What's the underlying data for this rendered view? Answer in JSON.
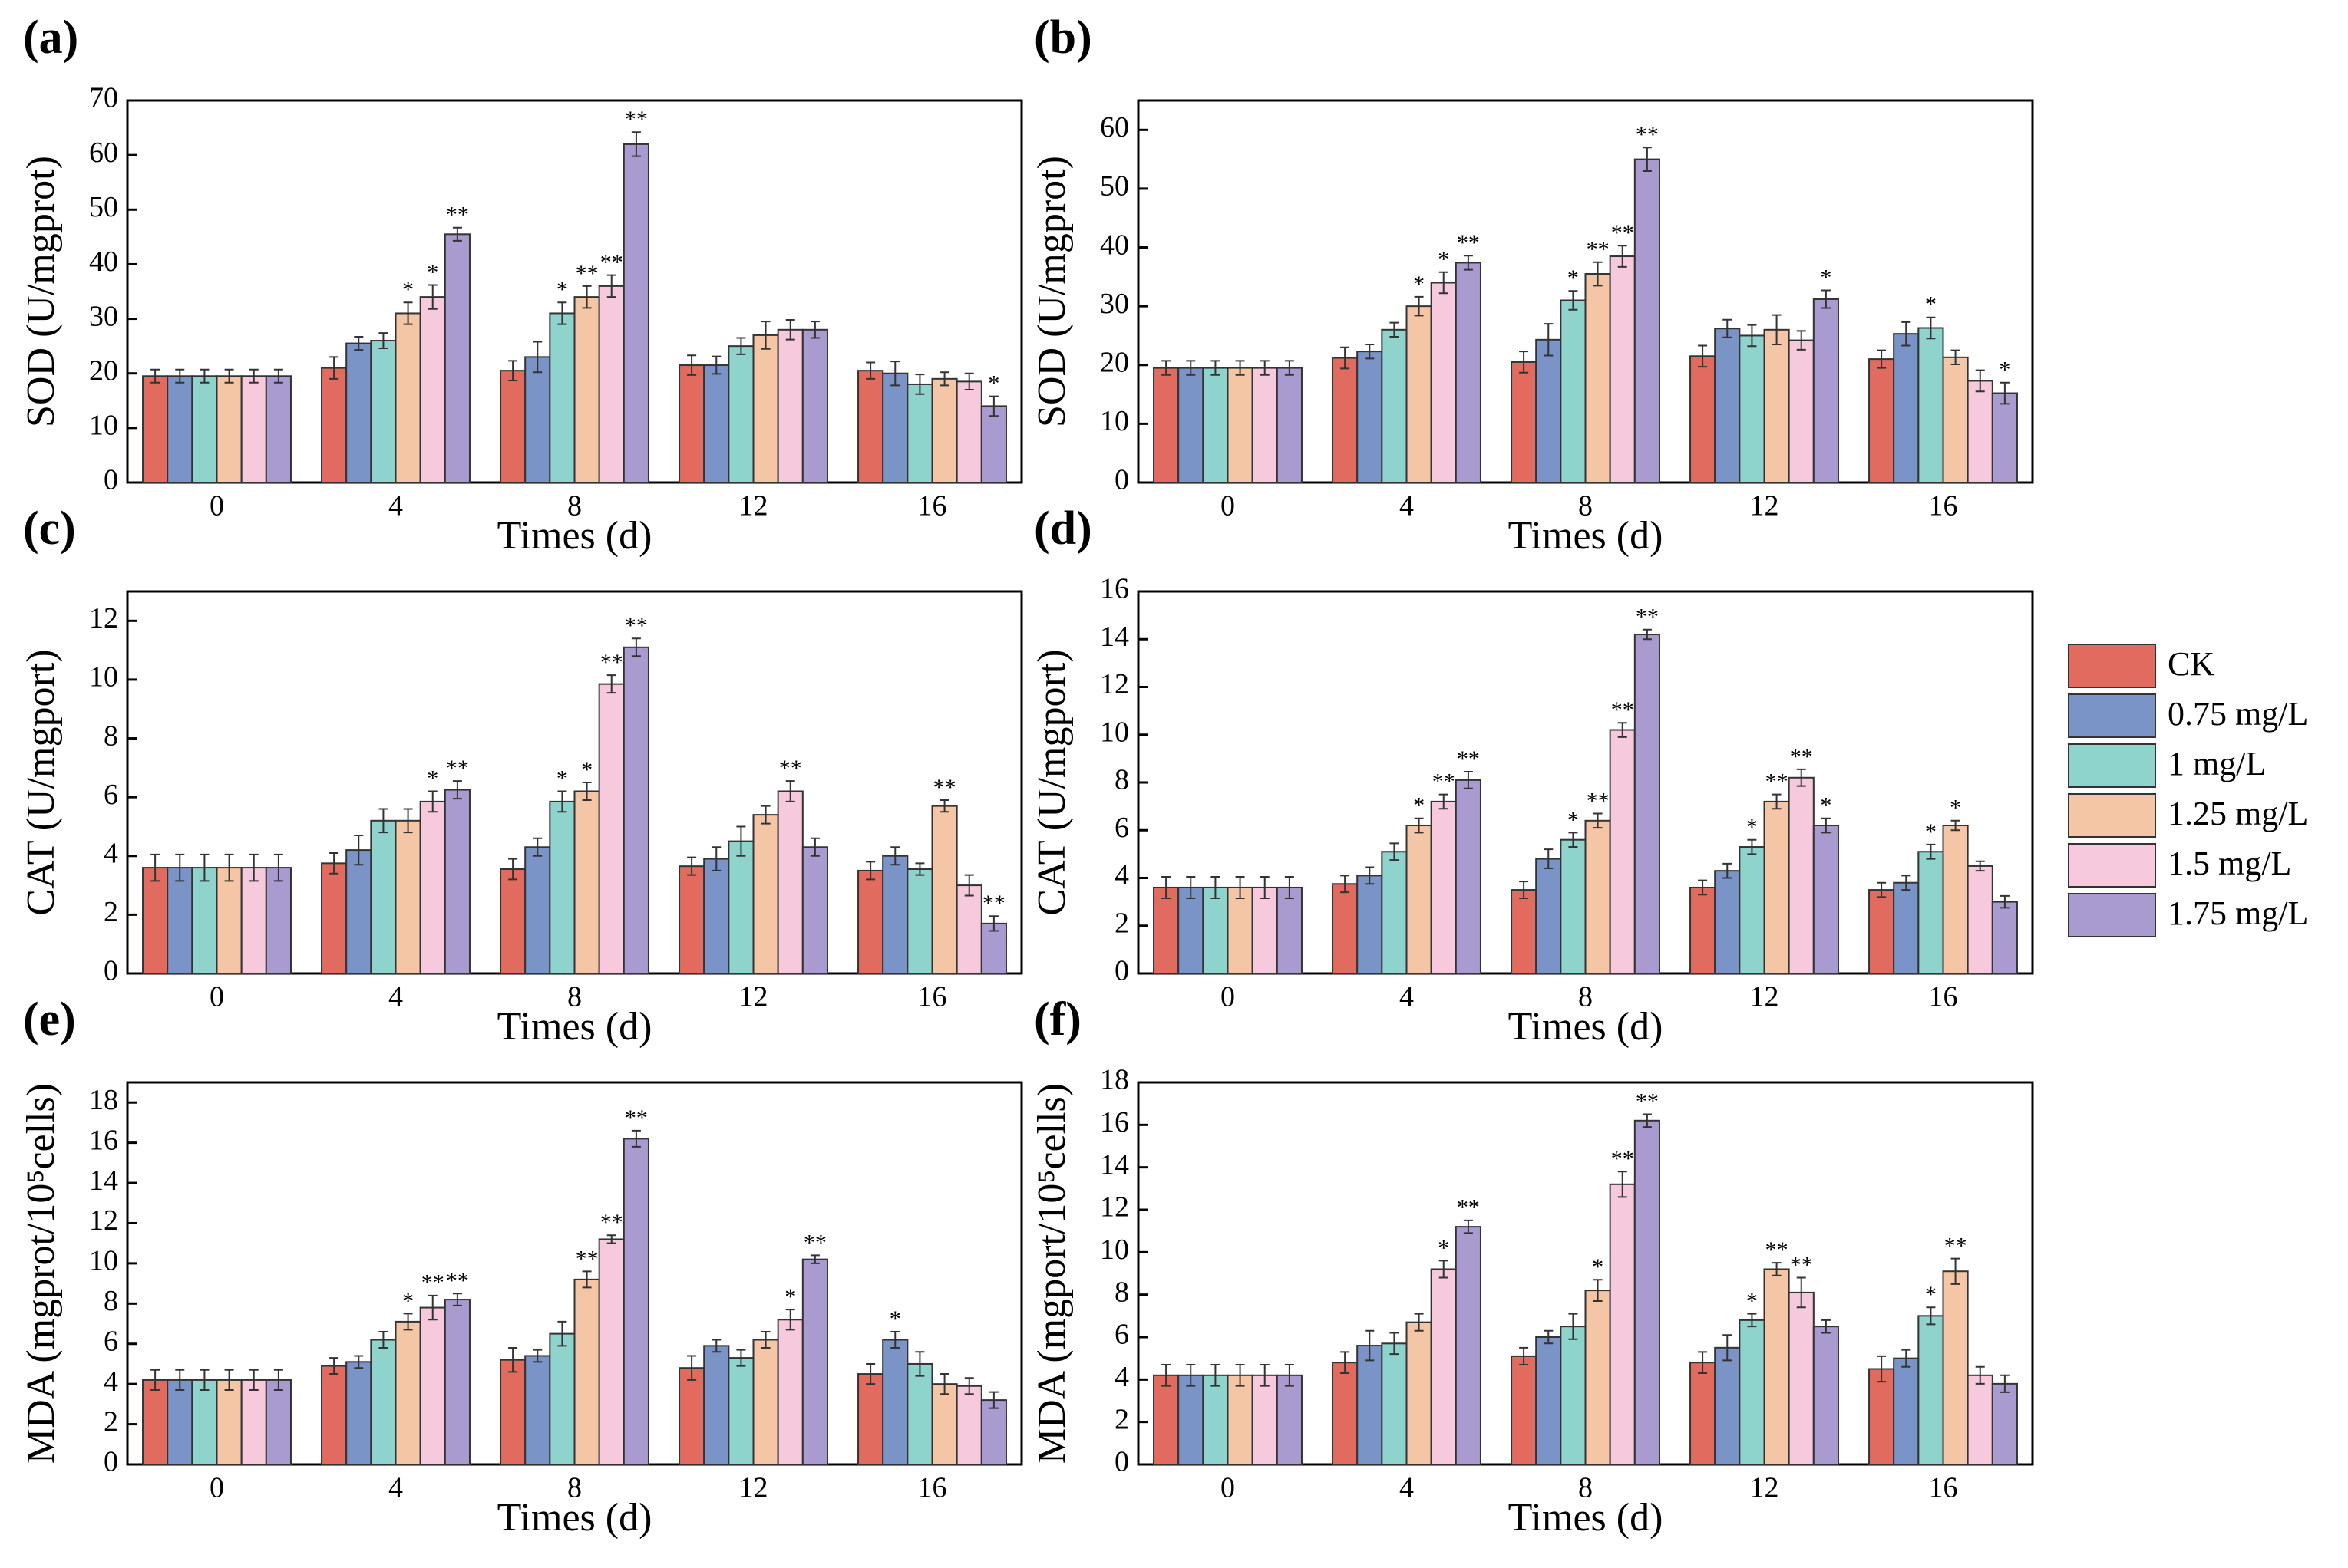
{
  "chart_data": [
    {
      "type": "bar",
      "panel": "(a)",
      "ylabel": "SOD (U/mgprot)",
      "xlabel": "Times (d)",
      "categories": [
        "0",
        "4",
        "8",
        "12",
        "16"
      ],
      "ylim": [
        0,
        70
      ],
      "yticks": [
        0,
        10,
        20,
        30,
        40,
        50,
        60,
        70
      ],
      "series": [
        {
          "name": "CK",
          "color": "#e06b5e",
          "values": [
            19.5,
            21,
            20.5,
            21.5,
            20.5
          ],
          "errors": [
            1.2,
            2,
            1.8,
            1.8,
            1.5
          ],
          "labels": [
            null,
            null,
            null,
            null,
            null
          ]
        },
        {
          "name": "0.75 mg/L",
          "color": "#7a94c8",
          "values": [
            19.5,
            25.5,
            23,
            21.5,
            20
          ],
          "errors": [
            1.2,
            1.2,
            2.8,
            1.6,
            2.2
          ],
          "labels": [
            null,
            null,
            null,
            null,
            null
          ]
        },
        {
          "name": "1 mg/L",
          "color": "#8fd3cd",
          "values": [
            19.5,
            26,
            31,
            25,
            18
          ],
          "errors": [
            1.2,
            1.4,
            2,
            1.5,
            1.8
          ],
          "labels": [
            null,
            null,
            "*",
            null,
            null
          ]
        },
        {
          "name": "1.25 mg/L",
          "color": "#f5c6a5",
          "values": [
            19.5,
            31,
            34,
            27,
            19
          ],
          "errors": [
            1.2,
            2,
            2,
            2.5,
            1.2
          ],
          "labels": [
            null,
            "*",
            "**",
            null,
            null
          ]
        },
        {
          "name": "1.5 mg/L",
          "color": "#f6c9dc",
          "values": [
            19.5,
            34,
            36,
            28,
            18.5
          ],
          "errors": [
            1.2,
            2.2,
            2,
            1.8,
            1.5
          ],
          "labels": [
            null,
            "*",
            "**",
            null,
            null
          ]
        },
        {
          "name": "1.75 mg/L",
          "color": "#a99ad0",
          "values": [
            19.5,
            45.5,
            62,
            28,
            14
          ],
          "errors": [
            1.2,
            1.2,
            2.2,
            1.5,
            1.8
          ],
          "labels": [
            null,
            "**",
            "**",
            null,
            "*"
          ]
        }
      ]
    },
    {
      "type": "bar",
      "panel": "(b)",
      "ylabel": "SOD (U/mgprot)",
      "xlabel": "Times (d)",
      "categories": [
        "0",
        "4",
        "8",
        "12",
        "16"
      ],
      "ylim": [
        0,
        65
      ],
      "yticks": [
        0,
        10,
        20,
        30,
        40,
        50,
        60
      ],
      "series": [
        {
          "name": "CK",
          "color": "#e06b5e",
          "values": [
            19.5,
            21.2,
            20.5,
            21.5,
            21
          ],
          "errors": [
            1.2,
            1.8,
            1.8,
            1.8,
            1.5
          ],
          "labels": [
            null,
            null,
            null,
            null,
            null
          ]
        },
        {
          "name": "0.75 mg/L",
          "color": "#7a94c8",
          "values": [
            19.5,
            22.3,
            24.3,
            26.2,
            25.3
          ],
          "errors": [
            1.2,
            1.2,
            2.7,
            1.5,
            2
          ],
          "labels": [
            null,
            null,
            null,
            null,
            null
          ]
        },
        {
          "name": "1 mg/L",
          "color": "#8fd3cd",
          "values": [
            19.5,
            26,
            31,
            25,
            26.3
          ],
          "errors": [
            1.2,
            1.2,
            1.6,
            1.8,
            1.8
          ],
          "labels": [
            null,
            null,
            "*",
            null,
            "*"
          ]
        },
        {
          "name": "1.25 mg/L",
          "color": "#f5c6a5",
          "values": [
            19.5,
            30,
            35.5,
            26,
            21.3
          ],
          "errors": [
            1.2,
            1.6,
            2,
            2.5,
            1.2
          ],
          "labels": [
            null,
            "*",
            "**",
            null,
            null
          ]
        },
        {
          "name": "1.5 mg/L",
          "color": "#f6c9dc",
          "values": [
            19.5,
            34,
            38.5,
            24.2,
            17.3
          ],
          "errors": [
            1.2,
            1.8,
            1.8,
            1.6,
            1.8
          ],
          "labels": [
            null,
            "*",
            "**",
            null,
            null
          ]
        },
        {
          "name": "1.75 mg/L",
          "color": "#a99ad0",
          "values": [
            19.5,
            37.4,
            55,
            31.2,
            15.2
          ],
          "errors": [
            1.2,
            1.2,
            2,
            1.5,
            1.8
          ],
          "labels": [
            null,
            "**",
            "**",
            "*",
            "*"
          ]
        }
      ]
    },
    {
      "type": "bar",
      "panel": "(c)",
      "ylabel": "CAT (U/mgport)",
      "xlabel": "Times (d)",
      "categories": [
        "0",
        "4",
        "8",
        "12",
        "16"
      ],
      "ylim": [
        0,
        13
      ],
      "yticks": [
        0,
        2,
        4,
        6,
        8,
        10,
        12
      ],
      "series": [
        {
          "name": "CK",
          "color": "#e06b5e",
          "values": [
            3.6,
            3.75,
            3.55,
            3.65,
            3.5
          ],
          "errors": [
            0.45,
            0.35,
            0.35,
            0.3,
            0.3
          ],
          "labels": [
            null,
            null,
            null,
            null,
            null
          ]
        },
        {
          "name": "0.75 mg/L",
          "color": "#7a94c8",
          "values": [
            3.6,
            4.2,
            4.3,
            3.9,
            4.0
          ],
          "errors": [
            0.45,
            0.5,
            0.3,
            0.4,
            0.3
          ],
          "labels": [
            null,
            null,
            null,
            null,
            null
          ]
        },
        {
          "name": "1 mg/L",
          "color": "#8fd3cd",
          "values": [
            3.6,
            5.2,
            5.85,
            4.5,
            3.55
          ],
          "errors": [
            0.45,
            0.4,
            0.35,
            0.5,
            0.2
          ],
          "labels": [
            null,
            null,
            "*",
            null,
            null
          ]
        },
        {
          "name": "1.25 mg/L",
          "color": "#f5c6a5",
          "values": [
            3.6,
            5.2,
            6.2,
            5.4,
            5.7
          ],
          "errors": [
            0.45,
            0.4,
            0.3,
            0.3,
            0.2
          ],
          "labels": [
            null,
            null,
            "*",
            null,
            "**"
          ]
        },
        {
          "name": "1.5 mg/L",
          "color": "#f6c9dc",
          "values": [
            3.6,
            5.85,
            9.85,
            6.2,
            3.0
          ],
          "errors": [
            0.45,
            0.35,
            0.3,
            0.35,
            0.35
          ],
          "labels": [
            null,
            "*",
            "**",
            "**",
            null
          ]
        },
        {
          "name": "1.75 mg/L",
          "color": "#a99ad0",
          "values": [
            3.6,
            6.25,
            11.1,
            4.3,
            1.7
          ],
          "errors": [
            0.45,
            0.3,
            0.3,
            0.3,
            0.25
          ],
          "labels": [
            null,
            "**",
            "**",
            null,
            "**"
          ]
        }
      ]
    },
    {
      "type": "bar",
      "panel": "(d)",
      "ylabel": "CAT (U/mgport)",
      "xlabel": "Times (d)",
      "categories": [
        "0",
        "4",
        "8",
        "12",
        "16"
      ],
      "ylim": [
        0,
        16
      ],
      "yticks": [
        0,
        2,
        4,
        6,
        8,
        10,
        12,
        14,
        16
      ],
      "series": [
        {
          "name": "CK",
          "color": "#e06b5e",
          "values": [
            3.6,
            3.75,
            3.5,
            3.6,
            3.5
          ],
          "errors": [
            0.45,
            0.35,
            0.35,
            0.3,
            0.3
          ],
          "labels": [
            null,
            null,
            null,
            null,
            null
          ]
        },
        {
          "name": "0.75 mg/L",
          "color": "#7a94c8",
          "values": [
            3.6,
            4.1,
            4.8,
            4.3,
            3.8
          ],
          "errors": [
            0.45,
            0.35,
            0.4,
            0.3,
            0.3
          ],
          "labels": [
            null,
            null,
            null,
            null,
            null
          ]
        },
        {
          "name": "1 mg/L",
          "color": "#8fd3cd",
          "values": [
            3.6,
            5.1,
            5.6,
            5.3,
            5.1
          ],
          "errors": [
            0.45,
            0.35,
            0.3,
            0.3,
            0.3
          ],
          "labels": [
            null,
            null,
            "*",
            "*",
            "*"
          ]
        },
        {
          "name": "1.25 mg/L",
          "color": "#f5c6a5",
          "values": [
            3.6,
            6.2,
            6.4,
            7.2,
            6.2
          ],
          "errors": [
            0.45,
            0.3,
            0.3,
            0.3,
            0.2
          ],
          "labels": [
            null,
            "*",
            "**",
            "**",
            "*"
          ]
        },
        {
          "name": "1.5 mg/L",
          "color": "#f6c9dc",
          "values": [
            3.6,
            7.2,
            10.2,
            8.2,
            4.5
          ],
          "errors": [
            0.45,
            0.3,
            0.3,
            0.35,
            0.2
          ],
          "labels": [
            null,
            "**",
            "**",
            "**",
            null
          ]
        },
        {
          "name": "1.75 mg/L",
          "color": "#a99ad0",
          "values": [
            3.6,
            8.1,
            14.2,
            6.2,
            3.0
          ],
          "errors": [
            0.45,
            0.35,
            0.2,
            0.3,
            0.25
          ],
          "labels": [
            null,
            "**",
            "**",
            "*",
            null
          ]
        }
      ]
    },
    {
      "type": "bar",
      "panel": "(e)",
      "ylabel": "MDA (mgprot/10⁵cells)",
      "xlabel": "Times (d)",
      "categories": [
        "0",
        "4",
        "8",
        "12",
        "16"
      ],
      "ylim": [
        0,
        19
      ],
      "yticks": [
        0,
        2,
        4,
        6,
        8,
        10,
        12,
        14,
        16,
        18
      ],
      "series": [
        {
          "name": "CK",
          "color": "#e06b5e",
          "values": [
            4.2,
            4.9,
            5.2,
            4.8,
            4.5
          ],
          "errors": [
            0.5,
            0.4,
            0.6,
            0.6,
            0.5
          ],
          "labels": [
            null,
            null,
            null,
            null,
            null
          ]
        },
        {
          "name": "0.75 mg/L",
          "color": "#7a94c8",
          "values": [
            4.2,
            5.1,
            5.4,
            5.9,
            6.2
          ],
          "errors": [
            0.5,
            0.3,
            0.3,
            0.3,
            0.4
          ],
          "labels": [
            null,
            null,
            null,
            null,
            "*"
          ]
        },
        {
          "name": "1 mg/L",
          "color": "#8fd3cd",
          "values": [
            4.2,
            6.2,
            6.5,
            5.3,
            5.0
          ],
          "errors": [
            0.5,
            0.4,
            0.6,
            0.4,
            0.6
          ],
          "labels": [
            null,
            null,
            null,
            null,
            null
          ]
        },
        {
          "name": "1.25 mg/L",
          "color": "#f5c6a5",
          "values": [
            4.2,
            7.1,
            9.2,
            6.2,
            4.0
          ],
          "errors": [
            0.5,
            0.4,
            0.4,
            0.4,
            0.5
          ],
          "labels": [
            null,
            "*",
            "**",
            null,
            null
          ]
        },
        {
          "name": "1.5 mg/L",
          "color": "#f6c9dc",
          "values": [
            4.2,
            7.8,
            11.2,
            7.2,
            3.9
          ],
          "errors": [
            0.5,
            0.6,
            0.2,
            0.5,
            0.4
          ],
          "labels": [
            null,
            "**",
            "**",
            "*",
            null
          ]
        },
        {
          "name": "1.75 mg/L",
          "color": "#a99ad0",
          "values": [
            4.2,
            8.2,
            16.2,
            10.2,
            3.2
          ],
          "errors": [
            0.5,
            0.3,
            0.4,
            0.2,
            0.4
          ],
          "labels": [
            null,
            "**",
            "**",
            "**",
            null
          ]
        }
      ]
    },
    {
      "type": "bar",
      "panel": "(f)",
      "ylabel": "MDA (mgport/10⁵cells)",
      "xlabel": "Times (d)",
      "categories": [
        "0",
        "4",
        "8",
        "12",
        "16"
      ],
      "ylim": [
        0,
        18
      ],
      "yticks": [
        0,
        2,
        4,
        6,
        8,
        10,
        12,
        14,
        16,
        18
      ],
      "series": [
        {
          "name": "CK",
          "color": "#e06b5e",
          "values": [
            4.2,
            4.8,
            5.1,
            4.8,
            4.5
          ],
          "errors": [
            0.5,
            0.5,
            0.4,
            0.5,
            0.6
          ],
          "labels": [
            null,
            null,
            null,
            null,
            null
          ]
        },
        {
          "name": "0.75 mg/L",
          "color": "#7a94c8",
          "values": [
            4.2,
            5.6,
            6.0,
            5.5,
            5.0
          ],
          "errors": [
            0.5,
            0.7,
            0.3,
            0.6,
            0.4
          ],
          "labels": [
            null,
            null,
            null,
            null,
            null
          ]
        },
        {
          "name": "1 mg/L",
          "color": "#8fd3cd",
          "values": [
            4.2,
            5.7,
            6.5,
            6.8,
            7.0
          ],
          "errors": [
            0.5,
            0.5,
            0.6,
            0.3,
            0.4
          ],
          "labels": [
            null,
            null,
            null,
            "*",
            "*"
          ]
        },
        {
          "name": "1.25 mg/L",
          "color": "#f5c6a5",
          "values": [
            4.2,
            6.7,
            8.2,
            9.2,
            9.1
          ],
          "errors": [
            0.5,
            0.4,
            0.5,
            0.3,
            0.6
          ],
          "labels": [
            null,
            null,
            "*",
            "**",
            "**"
          ]
        },
        {
          "name": "1.5 mg/L",
          "color": "#f6c9dc",
          "values": [
            4.2,
            9.2,
            13.2,
            8.1,
            4.2
          ],
          "errors": [
            0.5,
            0.4,
            0.6,
            0.7,
            0.4
          ],
          "labels": [
            null,
            "*",
            "**",
            "**",
            null
          ]
        },
        {
          "name": "1.75 mg/L",
          "color": "#a99ad0",
          "values": [
            4.2,
            11.2,
            16.2,
            6.5,
            3.8
          ],
          "errors": [
            0.5,
            0.3,
            0.3,
            0.3,
            0.4
          ],
          "labels": [
            null,
            "**",
            "**",
            null,
            null
          ]
        }
      ]
    }
  ]
}
